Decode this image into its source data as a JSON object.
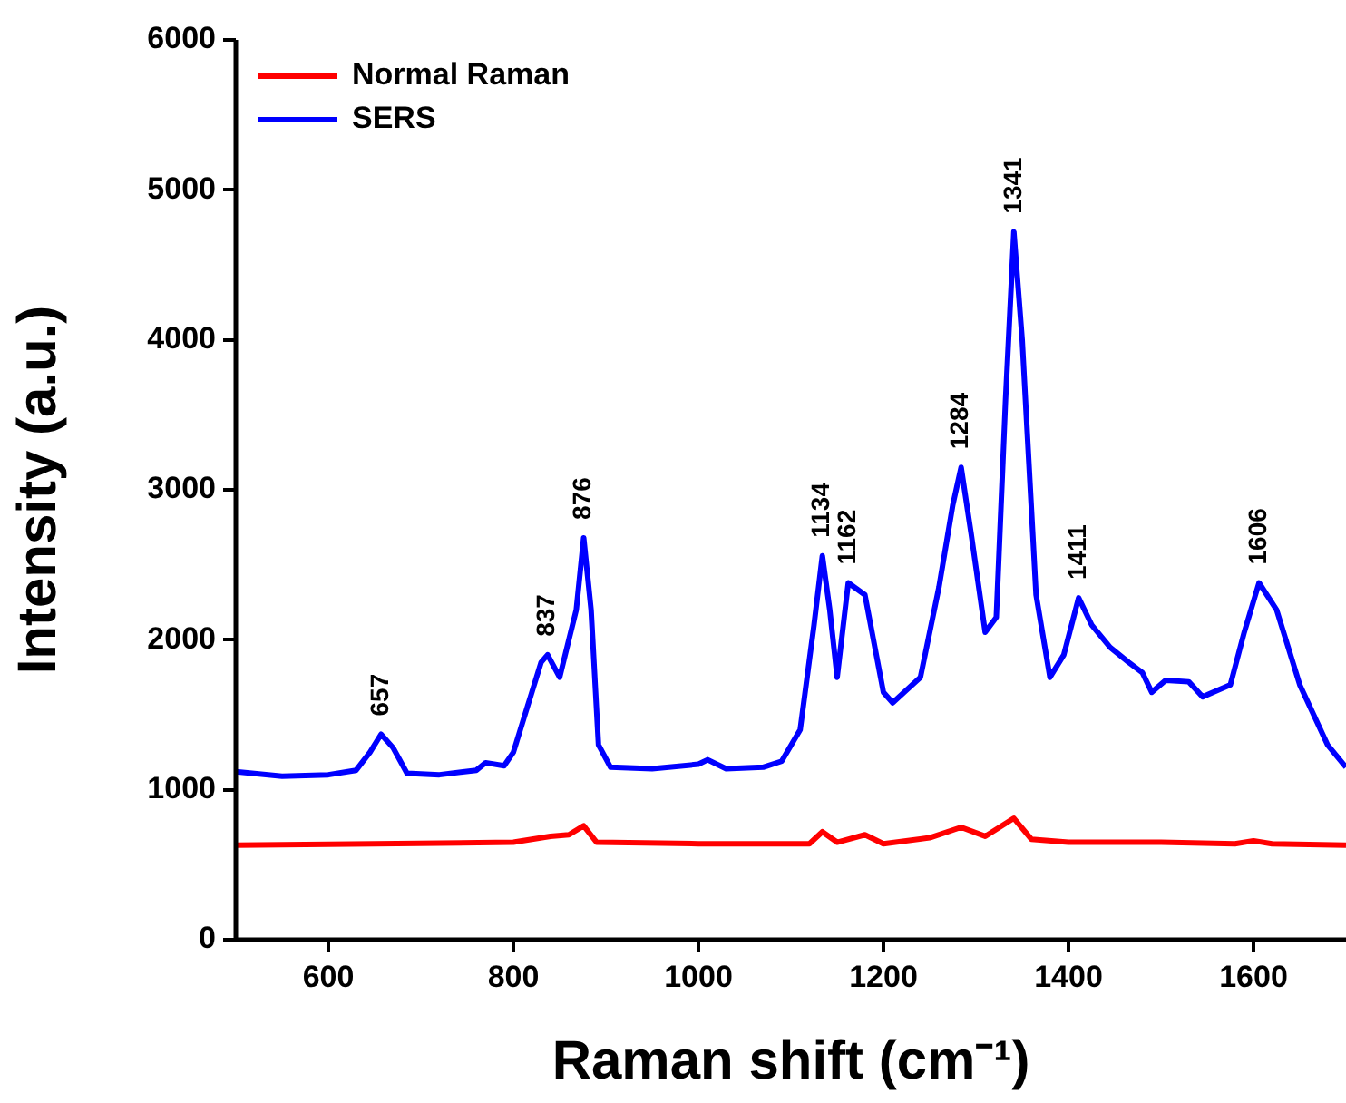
{
  "chart_data": {
    "type": "line",
    "xlabel": "Raman shift (cm⁻¹)",
    "ylabel": "Intensity (a.u.)",
    "xlim": [
      500,
      1700
    ],
    "xticks": [
      600,
      800,
      1000,
      1200,
      1400,
      1600
    ],
    "ylim": [
      0,
      6000
    ],
    "yticks": [
      0,
      1000,
      2000,
      3000,
      4000,
      5000,
      6000
    ],
    "grid": false,
    "legend": "top left",
    "marker": "none",
    "line_style": "solid",
    "series": [
      {
        "name": "Normal Raman",
        "color": "#ff0000",
        "x": [
          500,
          650,
          800,
          840,
          860,
          876,
          890,
          1000,
          1120,
          1134,
          1150,
          1180,
          1200,
          1250,
          1284,
          1310,
          1341,
          1360,
          1400,
          1500,
          1580,
          1600,
          1620,
          1700
        ],
        "values": [
          630,
          640,
          650,
          690,
          700,
          760,
          650,
          640,
          640,
          720,
          650,
          700,
          640,
          680,
          750,
          690,
          810,
          670,
          650,
          650,
          640,
          660,
          640,
          630
        ]
      },
      {
        "name": "SERS",
        "color": "#0000ff",
        "x": [
          500,
          550,
          600,
          630,
          645,
          657,
          670,
          685,
          720,
          760,
          770,
          790,
          800,
          815,
          830,
          837,
          850,
          860,
          868,
          876,
          884,
          892,
          905,
          950,
          1000,
          1010,
          1030,
          1070,
          1090,
          1110,
          1125,
          1134,
          1142,
          1150,
          1162,
          1180,
          1200,
          1210,
          1240,
          1260,
          1275,
          1284,
          1295,
          1310,
          1322,
          1332,
          1341,
          1350,
          1365,
          1380,
          1395,
          1411,
          1425,
          1445,
          1465,
          1480,
          1490,
          1505,
          1530,
          1545,
          1575,
          1590,
          1606,
          1625,
          1650,
          1680,
          1700
        ],
        "values": [
          1120,
          1090,
          1100,
          1130,
          1250,
          1370,
          1280,
          1110,
          1100,
          1130,
          1180,
          1160,
          1250,
          1550,
          1850,
          1900,
          1750,
          2000,
          2200,
          2680,
          2200,
          1300,
          1150,
          1140,
          1170,
          1200,
          1140,
          1150,
          1190,
          1400,
          2100,
          2560,
          2200,
          1750,
          2380,
          2300,
          1650,
          1580,
          1750,
          2350,
          2900,
          3150,
          2700,
          2050,
          2150,
          3600,
          4720,
          4000,
          2300,
          1750,
          1900,
          2280,
          2100,
          1950,
          1850,
          1780,
          1650,
          1730,
          1720,
          1620,
          1700,
          2050,
          2380,
          2200,
          1700,
          1300,
          1150
        ]
      }
    ],
    "annotations": [
      {
        "text": "657",
        "x": 657,
        "y": 1370
      },
      {
        "text": "837",
        "x": 837,
        "y": 1900
      },
      {
        "text": "876",
        "x": 876,
        "y": 2680
      },
      {
        "text": "1134",
        "x": 1134,
        "y": 2560
      },
      {
        "text": "1162",
        "x": 1162,
        "y": 2380
      },
      {
        "text": "1284",
        "x": 1284,
        "y": 3150
      },
      {
        "text": "1341",
        "x": 1341,
        "y": 4720
      },
      {
        "text": "1411",
        "x": 1411,
        "y": 2280
      },
      {
        "text": "1606",
        "x": 1606,
        "y": 2380
      }
    ]
  }
}
